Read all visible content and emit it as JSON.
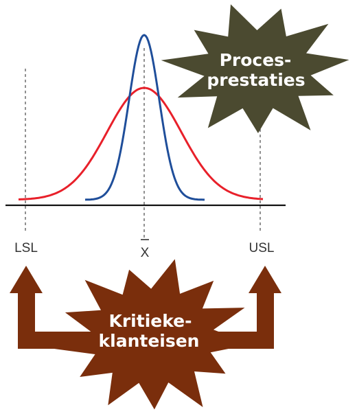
{
  "labels": {
    "lsl": "LSL",
    "xbar": "X",
    "usl": "USL"
  },
  "process_star": {
    "line1": "Proces-",
    "line2": "prestaties"
  },
  "customer_star": {
    "line1": "Kritieke-",
    "line2": "klanteisen"
  },
  "colors": {
    "narrow_curve": "#1f4e9a",
    "wide_curve": "#e8202a",
    "baseline": "#111111",
    "process_star_fill": "#4b4a30",
    "customer_star_fill": "#7a2e0c",
    "arrow_fill": "#7a2e0c",
    "spec_lines": "#555555"
  },
  "icons": {
    "process_star": "burst-shape",
    "customer_star": "burst-shape",
    "left_arrow": "arrow-up",
    "right_arrow": "arrow-up"
  }
}
